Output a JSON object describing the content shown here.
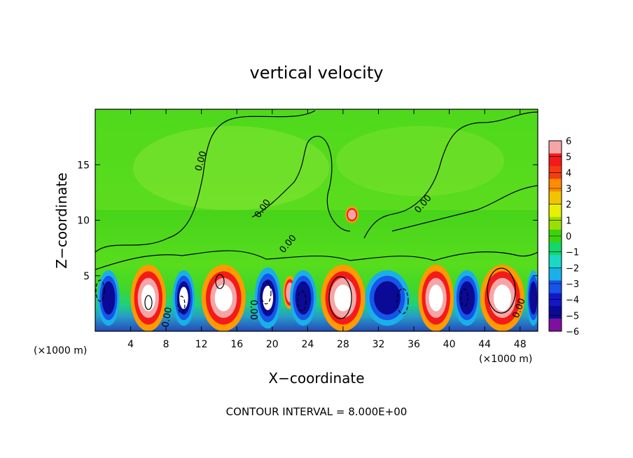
{
  "chart_data": {
    "type": "heatmap",
    "title": "vertical velocity",
    "xlabel": "X−coordinate",
    "ylabel": "Z−coordinate",
    "x_unit_left": "(×1000 m)",
    "x_unit_right": "(×1000 m)",
    "xlim": [
      0,
      50
    ],
    "ylim": [
      0,
      20
    ],
    "x_ticks": [
      "4",
      "8",
      "12",
      "16",
      "20",
      "24",
      "28",
      "32",
      "36",
      "40",
      "44",
      "48"
    ],
    "y_ticks": [
      "5",
      "10",
      "15"
    ],
    "contour_label": "0.00",
    "contour_interval": "CONTOUR INTERVAL = 8.000E+00",
    "colorbar": {
      "labels": [
        "6",
        "5",
        "4",
        "3",
        "2",
        "1",
        "0",
        "−1",
        "−2",
        "−3",
        "−4",
        "−5",
        "−6"
      ],
      "colors": [
        "#f4a6a6",
        "#f51a1a",
        "#f53c10",
        "#ff8c00",
        "#f2c400",
        "#e8ef00",
        "#9bdf00",
        "#3bd40b",
        "#10d86a",
        "#19d9c4",
        "#19b0e8",
        "#1655e8",
        "#1218c8",
        "#0a0a96",
        "#7f0fa0"
      ]
    },
    "cells": [
      {
        "x": 1.5,
        "z": 3,
        "w": 2.5,
        "h": 5,
        "w_value": -5
      },
      {
        "x": 6,
        "z": 3,
        "w": 4,
        "h": 6,
        "w_value": 6
      },
      {
        "x": 10,
        "z": 3,
        "w": 2.5,
        "h": 5,
        "w_value": -6
      },
      {
        "x": 14.5,
        "z": 3,
        "w": 5,
        "h": 6,
        "w_value": 6
      },
      {
        "x": 19.5,
        "z": 3,
        "w": 3,
        "h": 5.5,
        "w_value": -6
      },
      {
        "x": 22,
        "z": 3.5,
        "w": 1.5,
        "h": 3,
        "w_value": 4
      },
      {
        "x": 23.5,
        "z": 3,
        "w": 3,
        "h": 5,
        "w_value": -5
      },
      {
        "x": 28,
        "z": 3,
        "w": 5,
        "h": 6,
        "w_value": 6
      },
      {
        "x": 33,
        "z": 3,
        "w": 5,
        "h": 5,
        "w_value": -5
      },
      {
        "x": 38.5,
        "z": 3,
        "w": 4,
        "h": 6,
        "w_value": 6
      },
      {
        "x": 42,
        "z": 3,
        "w": 3,
        "h": 5,
        "w_value": -5
      },
      {
        "x": 46,
        "z": 3,
        "w": 5,
        "h": 6,
        "w_value": 6
      },
      {
        "x": 49.5,
        "z": 3,
        "w": 1.5,
        "h": 5,
        "w_value": -5
      },
      {
        "x": 29,
        "z": 10.5,
        "w": 1.5,
        "h": 1.5,
        "w_value": 4
      }
    ]
  }
}
